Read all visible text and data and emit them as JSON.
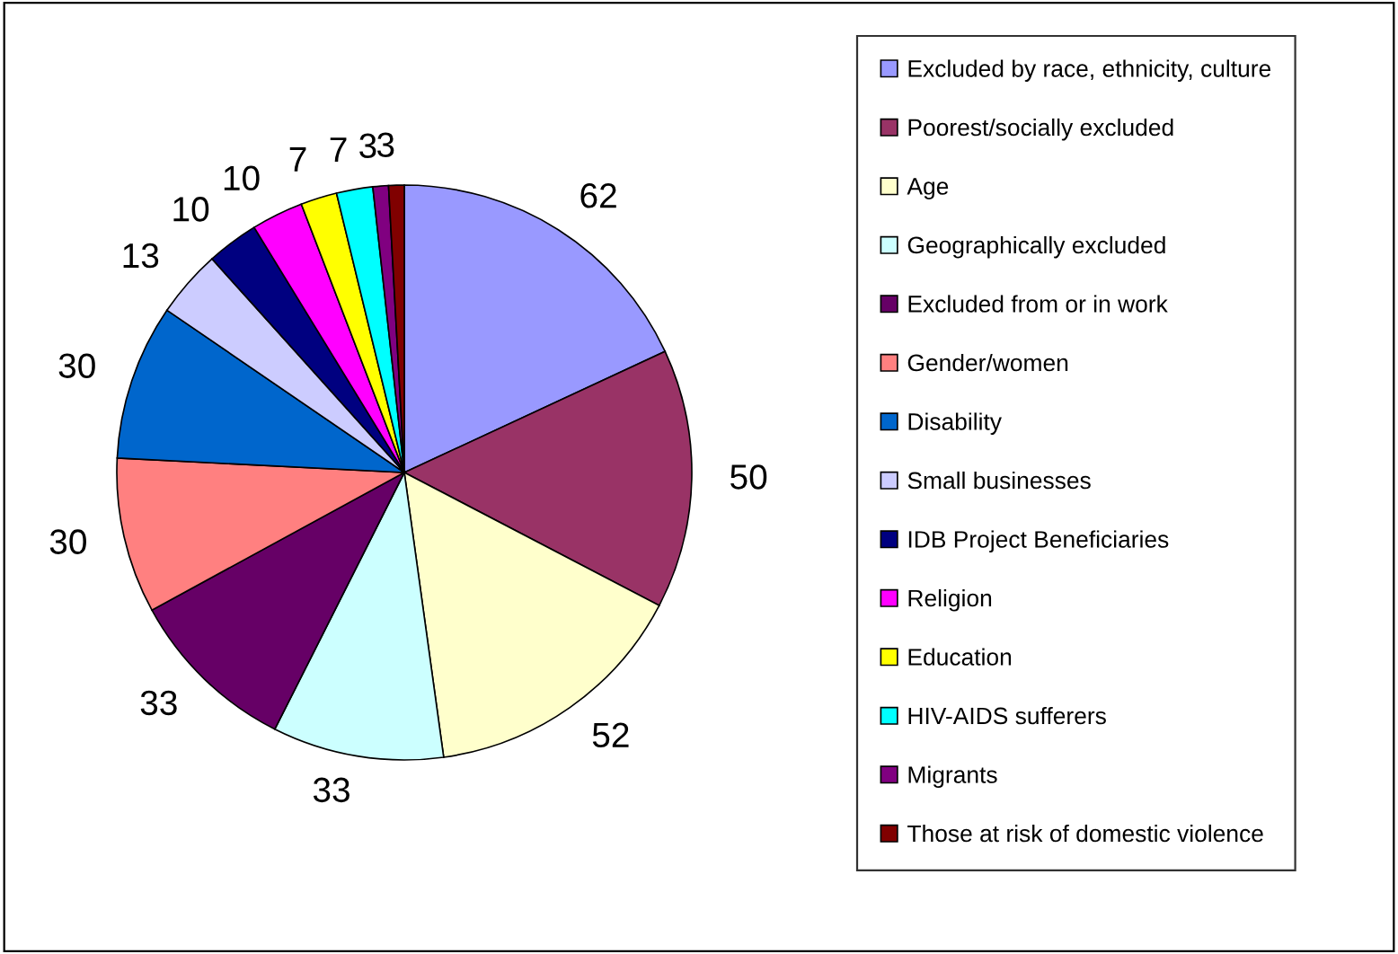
{
  "chart_data": {
    "type": "pie",
    "legend": "right",
    "data_labels": true,
    "categories": [
      "Excluded by race, ethnicity, culture",
      "Poorest/socially excluded",
      "Age",
      "Geographically excluded",
      "Excluded from or in work",
      "Gender/women",
      "Disability",
      "Small businesses",
      "IDB Project Beneficiaries",
      "Religion",
      "Education",
      "HIV-AIDS sufferers",
      "Migrants",
      "Those at risk of domestic violence"
    ],
    "values": [
      62,
      50,
      52,
      33,
      33,
      30,
      30,
      13,
      10,
      10,
      7,
      7,
      3,
      3
    ],
    "colors": [
      "#9999ff",
      "#993366",
      "#ffffcc",
      "#ccffff",
      "#660066",
      "#ff8080",
      "#0066cc",
      "#ccccff",
      "#000080",
      "#ff00ff",
      "#ffff00",
      "#00ffff",
      "#800080",
      "#800000"
    ]
  }
}
